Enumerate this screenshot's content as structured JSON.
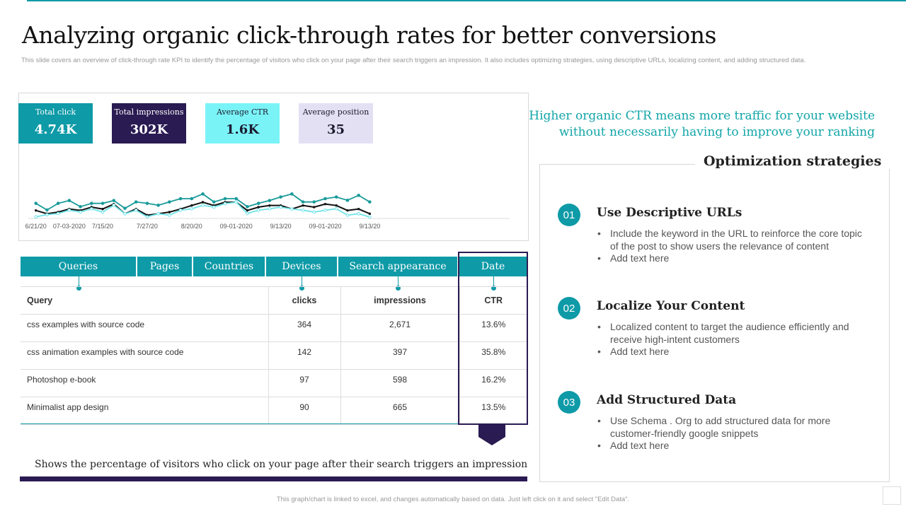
{
  "title": "Analyzing organic click-through rates for better conversions",
  "subtitle": "This slide covers an overview of click-through rate KPI to identify the percentage of visitors who click on your page after their search triggers an impression. It also includes optimizing strategies, using descriptive URLs, localizing content, and adding structured data.",
  "kpis": [
    {
      "label": "Total click",
      "value": "4.74K",
      "bg": "#0e9aa7",
      "fg": "#ffffff"
    },
    {
      "label": "Total impressions",
      "value": "302K",
      "bg": "#2a1b52",
      "fg": "#ffffff"
    },
    {
      "label": "Average CTR",
      "value": "1.6K",
      "bg": "#7af3f7",
      "fg": "#1a1a2e"
    },
    {
      "label": "Average position",
      "value": "35",
      "bg": "#e4e0f4",
      "fg": "#1a1a2e"
    }
  ],
  "chart_data": {
    "type": "line",
    "x_tick_labels": [
      "6/21/20",
      "07-03-2020",
      "7/15/20",
      "7/27/20",
      "8/20/20",
      "09-01-2020",
      "9/13/20",
      "09-01-2020",
      "9/13/20"
    ],
    "x_tick_indices": [
      0,
      3,
      6,
      10,
      14,
      18,
      22,
      26,
      30
    ],
    "grid": false,
    "y_axis_visible": false,
    "series": [
      {
        "color": "#1a9a9a",
        "values": [
          64,
          36,
          64,
          76,
          50,
          64,
          64,
          76,
          43,
          70,
          64,
          56,
          70,
          84,
          84,
          104,
          70,
          84,
          84,
          50,
          64,
          76,
          91,
          104,
          70,
          70,
          84,
          91,
          77,
          98,
          70
        ]
      },
      {
        "color": "#111111",
        "values": [
          34,
          20,
          27,
          40,
          34,
          48,
          40,
          61,
          20,
          40,
          14,
          20,
          27,
          40,
          55,
          69,
          55,
          69,
          69,
          34,
          48,
          55,
          55,
          40,
          55,
          48,
          61,
          55,
          34,
          40,
          20
        ]
      },
      {
        "color": "#6fe3e8",
        "values": [
          7,
          16,
          21,
          35,
          27,
          41,
          27,
          56,
          20,
          35,
          7,
          20,
          14,
          35,
          41,
          56,
          48,
          63,
          69,
          21,
          35,
          41,
          48,
          40,
          35,
          27,
          35,
          41,
          14,
          20,
          6
        ]
      }
    ]
  },
  "tabs": [
    "Queries",
    "Pages",
    "Countries",
    "Devices",
    "Search appearance",
    "Date"
  ],
  "table": {
    "headers": [
      "Query",
      "clicks",
      "impressions",
      "CTR"
    ],
    "rows": [
      [
        "css examples with source code",
        "364",
        "2,671",
        "13.6%"
      ],
      [
        "css  animation examples with source code",
        "142",
        "397",
        "35.8%"
      ],
      [
        "Photoshop e-book",
        "97",
        "598",
        "16.2%"
      ],
      [
        "Minimalist app design",
        "90",
        "665",
        "13.5%"
      ]
    ]
  },
  "caption": "Shows the percentage of visitors who click on your page after their search triggers an impression",
  "headline": "Higher organic CTR means more traffic for your website without necessarily having to improve your ranking",
  "panel_title": "Optimization strategies",
  "strategies": [
    {
      "num": "01",
      "title": "Use Descriptive URLs",
      "bullets": [
        "Include the keyword in the URL to reinforce the core topic of the post to show users the relevance of content",
        "Add text here"
      ]
    },
    {
      "num": "02",
      "title": "Localize Your Content",
      "bullets": [
        "Localized content to target the audience efficiently and receive high-intent customers",
        "Add text here"
      ]
    },
    {
      "num": "03",
      "title": "Add Structured Data",
      "bullets": [
        "Use Schema . Org to add structured data for more customer-friendly google snippets",
        "Add text here"
      ]
    }
  ],
  "footer": "This graph/chart is linked to excel, and changes automatically based on data. Just left click on it and select \"Edit Data\"."
}
